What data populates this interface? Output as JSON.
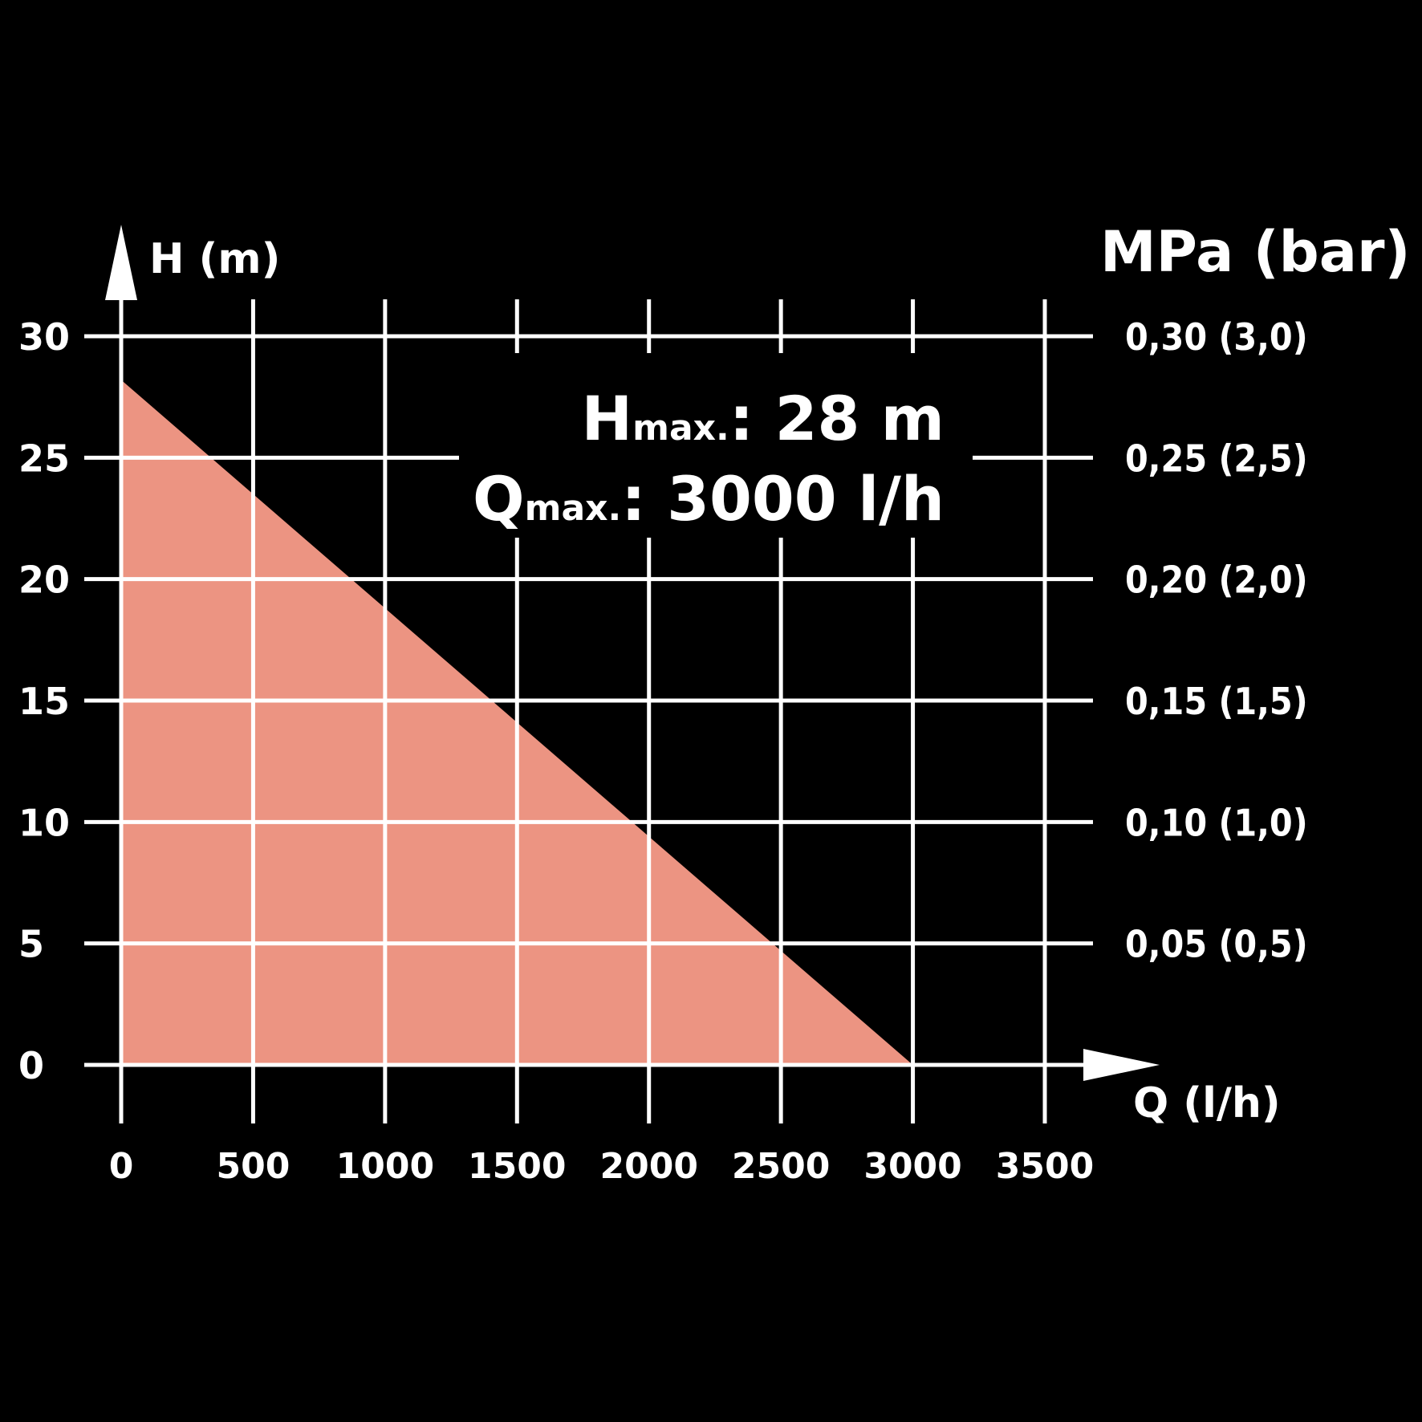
{
  "chart_data": {
    "type": "area",
    "xlabel": "Q (l/h)",
    "ylabel": "H (m)",
    "y2label": "MPa (bar)",
    "x_ticks": [
      "0",
      "500",
      "1000",
      "1500",
      "2000",
      "2500",
      "3000",
      "3500"
    ],
    "y_ticks": [
      "0",
      "5",
      "10",
      "15",
      "20",
      "25",
      "30"
    ],
    "y2_ticks": [
      "0,05 (0,5)",
      "0,10 (1,0)",
      "0,15 (1,5)",
      "0,20 (2,0)",
      "0,25 (2,5)",
      "0,30 (3,0)"
    ],
    "xlim": [
      0,
      3500
    ],
    "ylim": [
      0,
      30
    ],
    "grid": true,
    "series": [
      {
        "x": [
          0,
          3000
        ],
        "y": [
          28.2,
          0
        ],
        "color": "#EC9482"
      }
    ],
    "annotation": {
      "h_symbol": "H",
      "h_sub": "max.",
      "h_value": ": 28 m",
      "q_symbol": "Q",
      "q_sub": "max.",
      "q_value": ": 3000 l/h"
    }
  },
  "colors": {
    "background": "#000000",
    "grid": "#ffffff",
    "fill": "#EC9482",
    "text": "#ffffff"
  }
}
